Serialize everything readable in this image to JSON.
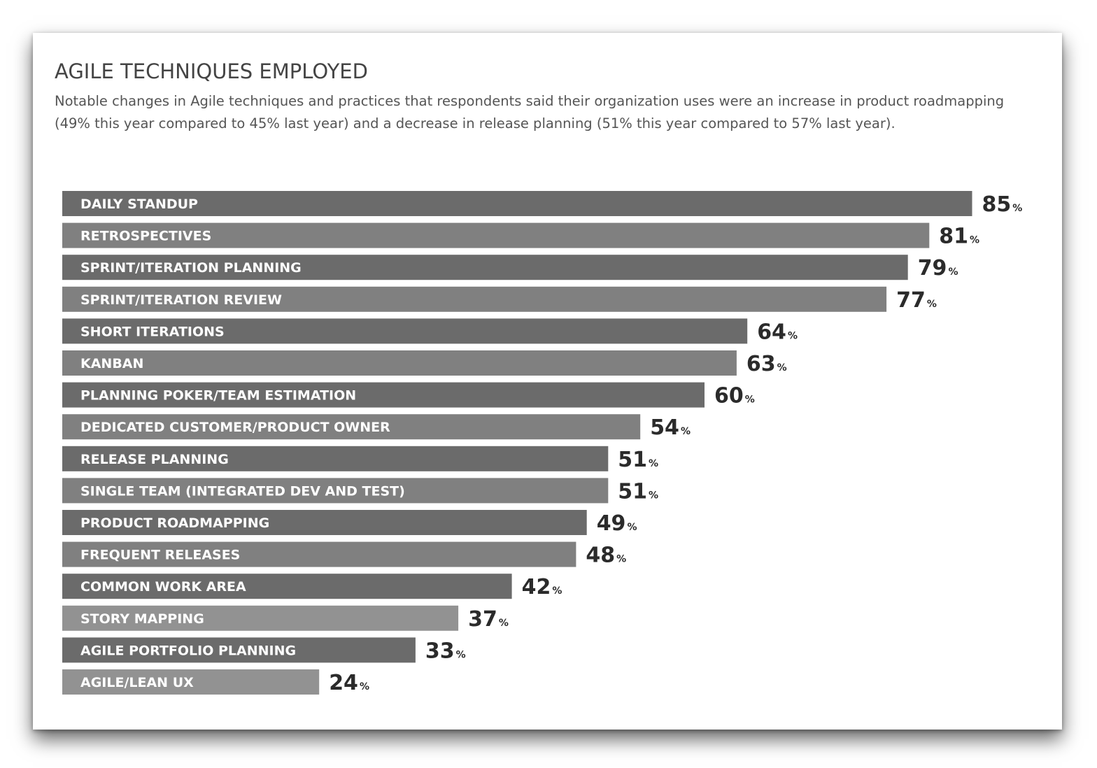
{
  "chart_data": {
    "type": "bar",
    "orientation": "horizontal",
    "title": "AGILE TECHNIQUES EMPLOYED",
    "subtitle": "Notable changes in Agile techniques and practices that respondents said their organization uses were an increase in product roadmapping (49% this year compared to 45% last year) and a decrease in release planning (51% this year compared to 57% last year).",
    "categories": [
      "DAILY STANDUP",
      "RETROSPECTIVES",
      "SPRINT/ITERATION PLANNING",
      "SPRINT/ITERATION REVIEW",
      "SHORT ITERATIONS",
      "KANBAN",
      "PLANNING POKER/TEAM ESTIMATION",
      "DEDICATED CUSTOMER/PRODUCT OWNER",
      "RELEASE PLANNING",
      "SINGLE TEAM (INTEGRATED DEV AND TEST)",
      "PRODUCT ROADMAPPING",
      "FREQUENT RELEASES",
      "COMMON WORK AREA",
      "STORY MAPPING",
      "AGILE PORTFOLIO PLANNING",
      "AGILE/LEAN UX"
    ],
    "values": [
      85,
      81,
      79,
      77,
      64,
      63,
      60,
      54,
      51,
      51,
      49,
      48,
      42,
      37,
      33,
      24
    ],
    "value_suffix": "%",
    "bar_colors": [
      "#6b6b6b",
      "#808080",
      "#6b6b6b",
      "#808080",
      "#6b6b6b",
      "#808080",
      "#6b6b6b",
      "#808080",
      "#6b6b6b",
      "#808080",
      "#6b6b6b",
      "#808080",
      "#6b6b6b",
      "#929292",
      "#6b6b6b",
      "#929292"
    ],
    "xlim": [
      0,
      100
    ],
    "grid": false,
    "legend": "none"
  }
}
